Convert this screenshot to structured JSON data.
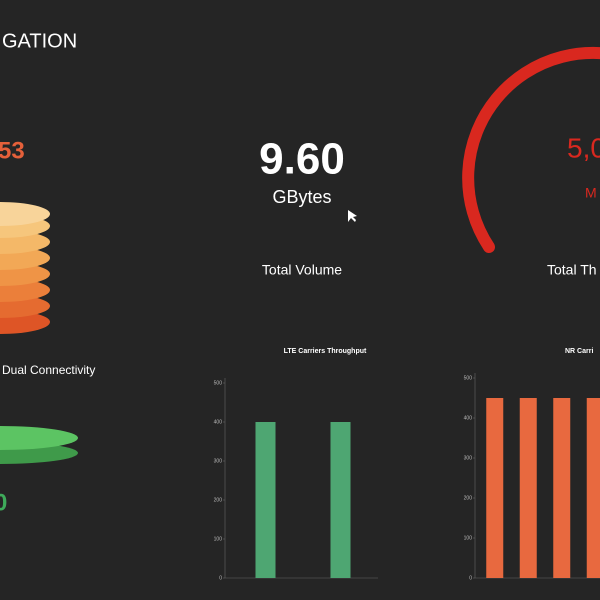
{
  "header": {
    "title": "GATION"
  },
  "widgets": [
    {
      "value": "53",
      "label": "Dual Connectivity",
      "value2": "0"
    },
    {
      "value": "9.60",
      "unit": "GBytes",
      "label": "Total Volume"
    },
    {
      "value": "5,0",
      "unit": "M",
      "label": "Total Th"
    }
  ],
  "chart_data": [
    {
      "type": "bar",
      "title": "LTE Carriers Throughput",
      "categories": [
        null,
        null
      ],
      "values": [
        400,
        400
      ],
      "color": "#4ea672",
      "ylim": [
        0,
        500
      ],
      "yticks": [
        0,
        100,
        200,
        300,
        400,
        500
      ]
    },
    {
      "type": "bar",
      "title": "NR Carri",
      "categories": [
        null,
        null,
        null,
        null
      ],
      "values": [
        450,
        450,
        450,
        450
      ],
      "color": "#e8693f",
      "ylim": [
        0,
        500
      ],
      "yticks": [
        0,
        100,
        200,
        300,
        400,
        500
      ]
    }
  ]
}
